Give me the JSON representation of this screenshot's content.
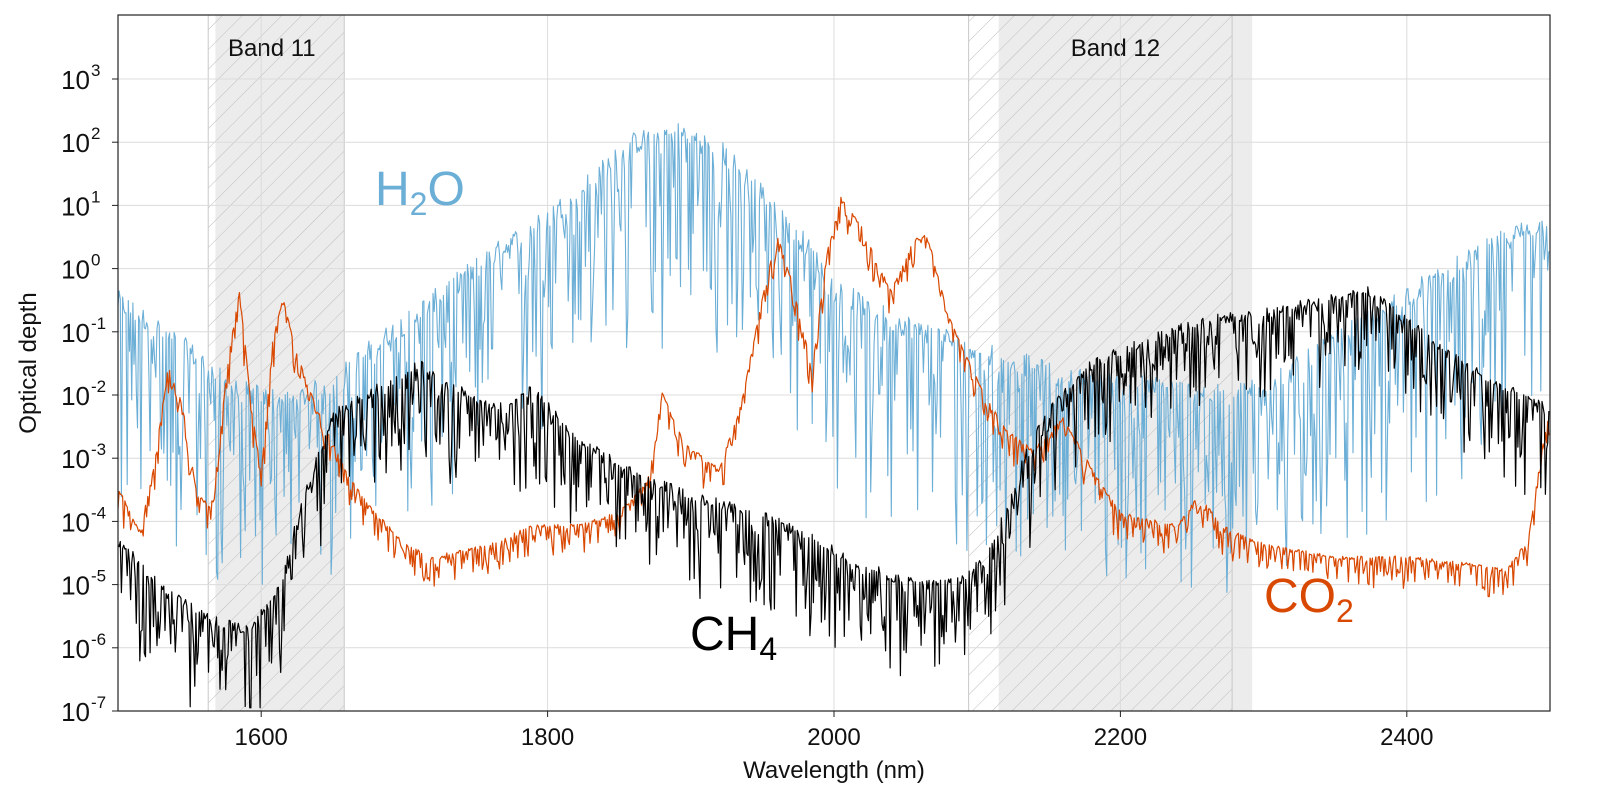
{
  "chart_data": {
    "type": "line",
    "title": "",
    "xlabel": "Wavelength (nm)",
    "ylabel": "Optical depth",
    "xlim": [
      1500,
      2500
    ],
    "ylog": true,
    "ylim_exponent": [
      -7,
      4
    ],
    "grid": true,
    "x_ticks": [
      1600,
      1800,
      2000,
      2200,
      2400
    ],
    "y_tick_exponents": [
      -7,
      -6,
      -5,
      -4,
      -3,
      -2,
      -1,
      0,
      1,
      2,
      3
    ],
    "y_tick_base": "10",
    "bands": [
      {
        "label": "Band 11",
        "solid": [
          1568,
          1658
        ],
        "hatched": [
          1563,
          1658
        ]
      },
      {
        "label": "Band 12",
        "solid": [
          2115,
          2292
        ],
        "hatched": [
          2094,
          2278
        ]
      }
    ],
    "series": [
      {
        "name": "H2O",
        "label_main": "H",
        "label_sub": "2",
        "label_tail": "O",
        "color": "#6baed6",
        "noise": 2.4,
        "envelope": [
          [
            1500,
            -0.7
          ],
          [
            1520,
            -1.0
          ],
          [
            1550,
            -1.5
          ],
          [
            1580,
            -2.1
          ],
          [
            1620,
            -2.3
          ],
          [
            1650,
            -2.0
          ],
          [
            1680,
            -1.4
          ],
          [
            1720,
            -0.7
          ],
          [
            1760,
            0.0
          ],
          [
            1800,
            0.6
          ],
          [
            1830,
            1.2
          ],
          [
            1860,
            1.8
          ],
          [
            1890,
            2.0
          ],
          [
            1920,
            1.7
          ],
          [
            1950,
            1.0
          ],
          [
            1980,
            0.2
          ],
          [
            2000,
            -0.5
          ],
          [
            2040,
            -1.0
          ],
          [
            2080,
            -1.3
          ],
          [
            2120,
            -1.6
          ],
          [
            2160,
            -1.9
          ],
          [
            2200,
            -2.0
          ],
          [
            2240,
            -2.1
          ],
          [
            2280,
            -2.2
          ],
          [
            2320,
            -1.8
          ],
          [
            2360,
            -1.2
          ],
          [
            2400,
            -0.6
          ],
          [
            2440,
            -0.1
          ],
          [
            2470,
            0.3
          ],
          [
            2500,
            0.6
          ]
        ]
      },
      {
        "name": "CH4",
        "label_main": "CH",
        "label_sub": "4",
        "label_tail": "",
        "color": "#000000",
        "noise": 1.1,
        "envelope": [
          [
            1500,
            -4.4
          ],
          [
            1530,
            -5.1
          ],
          [
            1560,
            -5.6
          ],
          [
            1590,
            -5.8
          ],
          [
            1610,
            -5.3
          ],
          [
            1630,
            -3.7
          ],
          [
            1650,
            -2.4
          ],
          [
            1680,
            -2.0
          ],
          [
            1710,
            -1.6
          ],
          [
            1730,
            -1.9
          ],
          [
            1760,
            -2.3
          ],
          [
            1790,
            -2.0
          ],
          [
            1820,
            -2.8
          ],
          [
            1860,
            -3.3
          ],
          [
            1900,
            -3.7
          ],
          [
            1940,
            -3.9
          ],
          [
            1980,
            -4.3
          ],
          [
            2020,
            -4.8
          ],
          [
            2060,
            -5.1
          ],
          [
            2090,
            -5.0
          ],
          [
            2110,
            -4.5
          ],
          [
            2130,
            -3.2
          ],
          [
            2150,
            -2.3
          ],
          [
            2180,
            -1.6
          ],
          [
            2220,
            -1.2
          ],
          [
            2260,
            -0.9
          ],
          [
            2300,
            -0.8
          ],
          [
            2340,
            -0.6
          ],
          [
            2370,
            -0.4
          ],
          [
            2400,
            -0.9
          ],
          [
            2440,
            -1.6
          ],
          [
            2470,
            -2.0
          ],
          [
            2500,
            -2.3
          ]
        ]
      },
      {
        "name": "CO2",
        "label_main": "CO",
        "label_sub": "2",
        "label_tail": "",
        "color": "#d94801",
        "noise": 0.35,
        "envelope": [
          [
            1500,
            -3.5
          ],
          [
            1515,
            -4.2
          ],
          [
            1525,
            -3.2
          ],
          [
            1535,
            -1.6
          ],
          [
            1545,
            -2.2
          ],
          [
            1555,
            -3.6
          ],
          [
            1565,
            -3.8
          ],
          [
            1578,
            -1.3
          ],
          [
            1585,
            -0.4
          ],
          [
            1593,
            -2.2
          ],
          [
            1600,
            -3.3
          ],
          [
            1608,
            -1.2
          ],
          [
            1615,
            -0.5
          ],
          [
            1625,
            -1.4
          ],
          [
            1640,
            -2.3
          ],
          [
            1660,
            -3.3
          ],
          [
            1680,
            -3.9
          ],
          [
            1700,
            -4.4
          ],
          [
            1720,
            -4.6
          ],
          [
            1760,
            -4.4
          ],
          [
            1790,
            -4.1
          ],
          [
            1820,
            -4.1
          ],
          [
            1850,
            -3.9
          ],
          [
            1870,
            -3.4
          ],
          [
            1880,
            -2.0
          ],
          [
            1895,
            -2.8
          ],
          [
            1920,
            -3.2
          ],
          [
            1935,
            -2.2
          ],
          [
            1950,
            -0.5
          ],
          [
            1960,
            0.5
          ],
          [
            1970,
            -0.2
          ],
          [
            1985,
            -1.6
          ],
          [
            1995,
            0.2
          ],
          [
            2005,
            1.1
          ],
          [
            2020,
            0.6
          ],
          [
            2040,
            -0.4
          ],
          [
            2055,
            0.4
          ],
          [
            2065,
            0.5
          ],
          [
            2080,
            -0.8
          ],
          [
            2100,
            -1.8
          ],
          [
            2120,
            -2.6
          ],
          [
            2140,
            -2.9
          ],
          [
            2160,
            -2.4
          ],
          [
            2180,
            -3.2
          ],
          [
            2200,
            -3.9
          ],
          [
            2240,
            -4.1
          ],
          [
            2255,
            -3.6
          ],
          [
            2270,
            -4.1
          ],
          [
            2300,
            -4.4
          ],
          [
            2350,
            -4.6
          ],
          [
            2400,
            -4.6
          ],
          [
            2440,
            -4.7
          ],
          [
            2470,
            -4.8
          ],
          [
            2485,
            -4.3
          ],
          [
            2495,
            -2.8
          ],
          [
            2500,
            -2.3
          ]
        ]
      }
    ]
  }
}
